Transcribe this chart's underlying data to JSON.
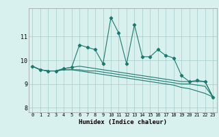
{
  "xlabel": "Humidex (Indice chaleur)",
  "x_values": [
    0,
    1,
    2,
    3,
    4,
    5,
    6,
    7,
    8,
    9,
    10,
    11,
    12,
    13,
    14,
    15,
    16,
    17,
    18,
    19,
    20,
    21,
    22,
    23
  ],
  "series1": [
    9.75,
    9.6,
    9.55,
    9.55,
    9.65,
    9.7,
    10.65,
    10.55,
    10.45,
    9.85,
    11.8,
    11.15,
    9.85,
    11.5,
    10.15,
    10.15,
    10.45,
    10.2,
    10.1,
    9.35,
    9.1,
    9.15,
    9.1,
    8.45
  ],
  "series2": [
    9.75,
    9.6,
    9.55,
    9.55,
    9.65,
    9.7,
    9.75,
    9.7,
    9.65,
    9.6,
    9.55,
    9.5,
    9.45,
    9.4,
    9.35,
    9.3,
    9.25,
    9.2,
    9.15,
    9.1,
    9.1,
    9.1,
    9.1,
    8.45
  ],
  "series3": [
    9.75,
    9.6,
    9.55,
    9.55,
    9.6,
    9.6,
    9.6,
    9.55,
    9.55,
    9.5,
    9.45,
    9.4,
    9.35,
    9.3,
    9.25,
    9.2,
    9.15,
    9.1,
    9.05,
    9.0,
    9.0,
    8.95,
    8.9,
    8.45
  ],
  "series4": [
    9.75,
    9.6,
    9.55,
    9.55,
    9.6,
    9.6,
    9.55,
    9.5,
    9.45,
    9.4,
    9.35,
    9.3,
    9.25,
    9.2,
    9.15,
    9.1,
    9.05,
    9.0,
    8.95,
    8.85,
    8.8,
    8.7,
    8.6,
    8.45
  ],
  "line_color": "#1a7a6e",
  "bg_color": "#d8f0ee",
  "grid_color": "#a0ccc8",
  "ylim": [
    7.8,
    12.2
  ],
  "yticks": [
    8,
    9,
    10,
    11
  ],
  "xticks": [
    0,
    1,
    2,
    3,
    4,
    5,
    6,
    7,
    8,
    9,
    10,
    11,
    12,
    13,
    14,
    15,
    16,
    17,
    18,
    19,
    20,
    21,
    22,
    23
  ]
}
